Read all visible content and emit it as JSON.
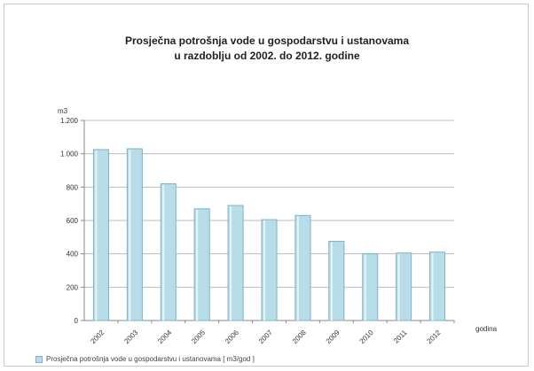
{
  "chart_data": {
    "type": "bar",
    "title_lines": [
      "Prosječna potrošnja vode u gospodarstvu i ustanovama",
      "u razdoblju od 2002. do 2012. godine"
    ],
    "ylabel": "m3",
    "xlabel": "godina",
    "categories": [
      "2002",
      "2003",
      "2004",
      "2005",
      "2006",
      "2007",
      "2008",
      "2009",
      "2010",
      "2011",
      "2012"
    ],
    "series": [
      {
        "name": "Prosječna potrošnja vode u gospodarstvu i ustanovama [ m3/god ]",
        "values": [
          1025,
          1030,
          820,
          670,
          690,
          605,
          630,
          475,
          400,
          405,
          410
        ],
        "color": "#b7dde8",
        "edge": "#7fb3c4"
      }
    ],
    "ylim": [
      0,
      1200
    ],
    "yticks": [
      0,
      200,
      400,
      600,
      800,
      1000,
      1200
    ],
    "ytick_labels": [
      "0",
      "200",
      "400",
      "600",
      "800",
      "1.000",
      "1.200"
    ],
    "grid": true,
    "legend_position": "bottom-left"
  }
}
